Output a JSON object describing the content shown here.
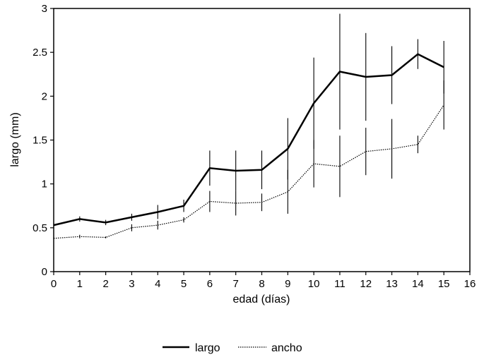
{
  "chart_data": {
    "type": "line",
    "xlabel": "edad (días)",
    "ylabel": "largo (mm)",
    "xlim": [
      0,
      16
    ],
    "ylim": [
      0,
      3
    ],
    "x_ticks": [
      "0",
      "1",
      "2",
      "3",
      "4",
      "5",
      "6",
      "7",
      "8",
      "9",
      "10",
      "11",
      "12",
      "13",
      "14",
      "15",
      "16"
    ],
    "y_ticks": [
      "0",
      "0.5",
      "1",
      "1.5",
      "2",
      "2.5",
      "3"
    ],
    "grid": false,
    "legend_position": "bottom-center",
    "x": [
      0,
      1,
      2,
      3,
      4,
      5,
      6,
      7,
      8,
      9,
      10,
      11,
      12,
      13,
      14,
      15
    ],
    "series": [
      {
        "name": "largo",
        "style": "solid",
        "color": "#000000",
        "values": [
          0.53,
          0.6,
          0.56,
          0.62,
          0.68,
          0.75,
          1.18,
          1.15,
          1.16,
          1.4,
          1.92,
          2.28,
          2.22,
          2.24,
          2.48,
          2.33
        ],
        "error": [
          0.02,
          0.03,
          0.03,
          0.04,
          0.08,
          0.07,
          0.2,
          0.23,
          0.22,
          0.35,
          0.52,
          0.66,
          0.5,
          0.33,
          0.17,
          0.3
        ]
      },
      {
        "name": "ancho",
        "style": "dotted",
        "color": "#000000",
        "values": [
          0.38,
          0.4,
          0.39,
          0.5,
          0.53,
          0.59,
          0.8,
          0.78,
          0.79,
          0.91,
          1.23,
          1.2,
          1.37,
          1.4,
          1.45,
          1.9
        ],
        "error": [
          0.01,
          0.02,
          0.01,
          0.04,
          0.05,
          0.03,
          0.12,
          0.14,
          0.1,
          0.25,
          0.27,
          0.35,
          0.27,
          0.34,
          0.1,
          0.28
        ]
      }
    ]
  }
}
